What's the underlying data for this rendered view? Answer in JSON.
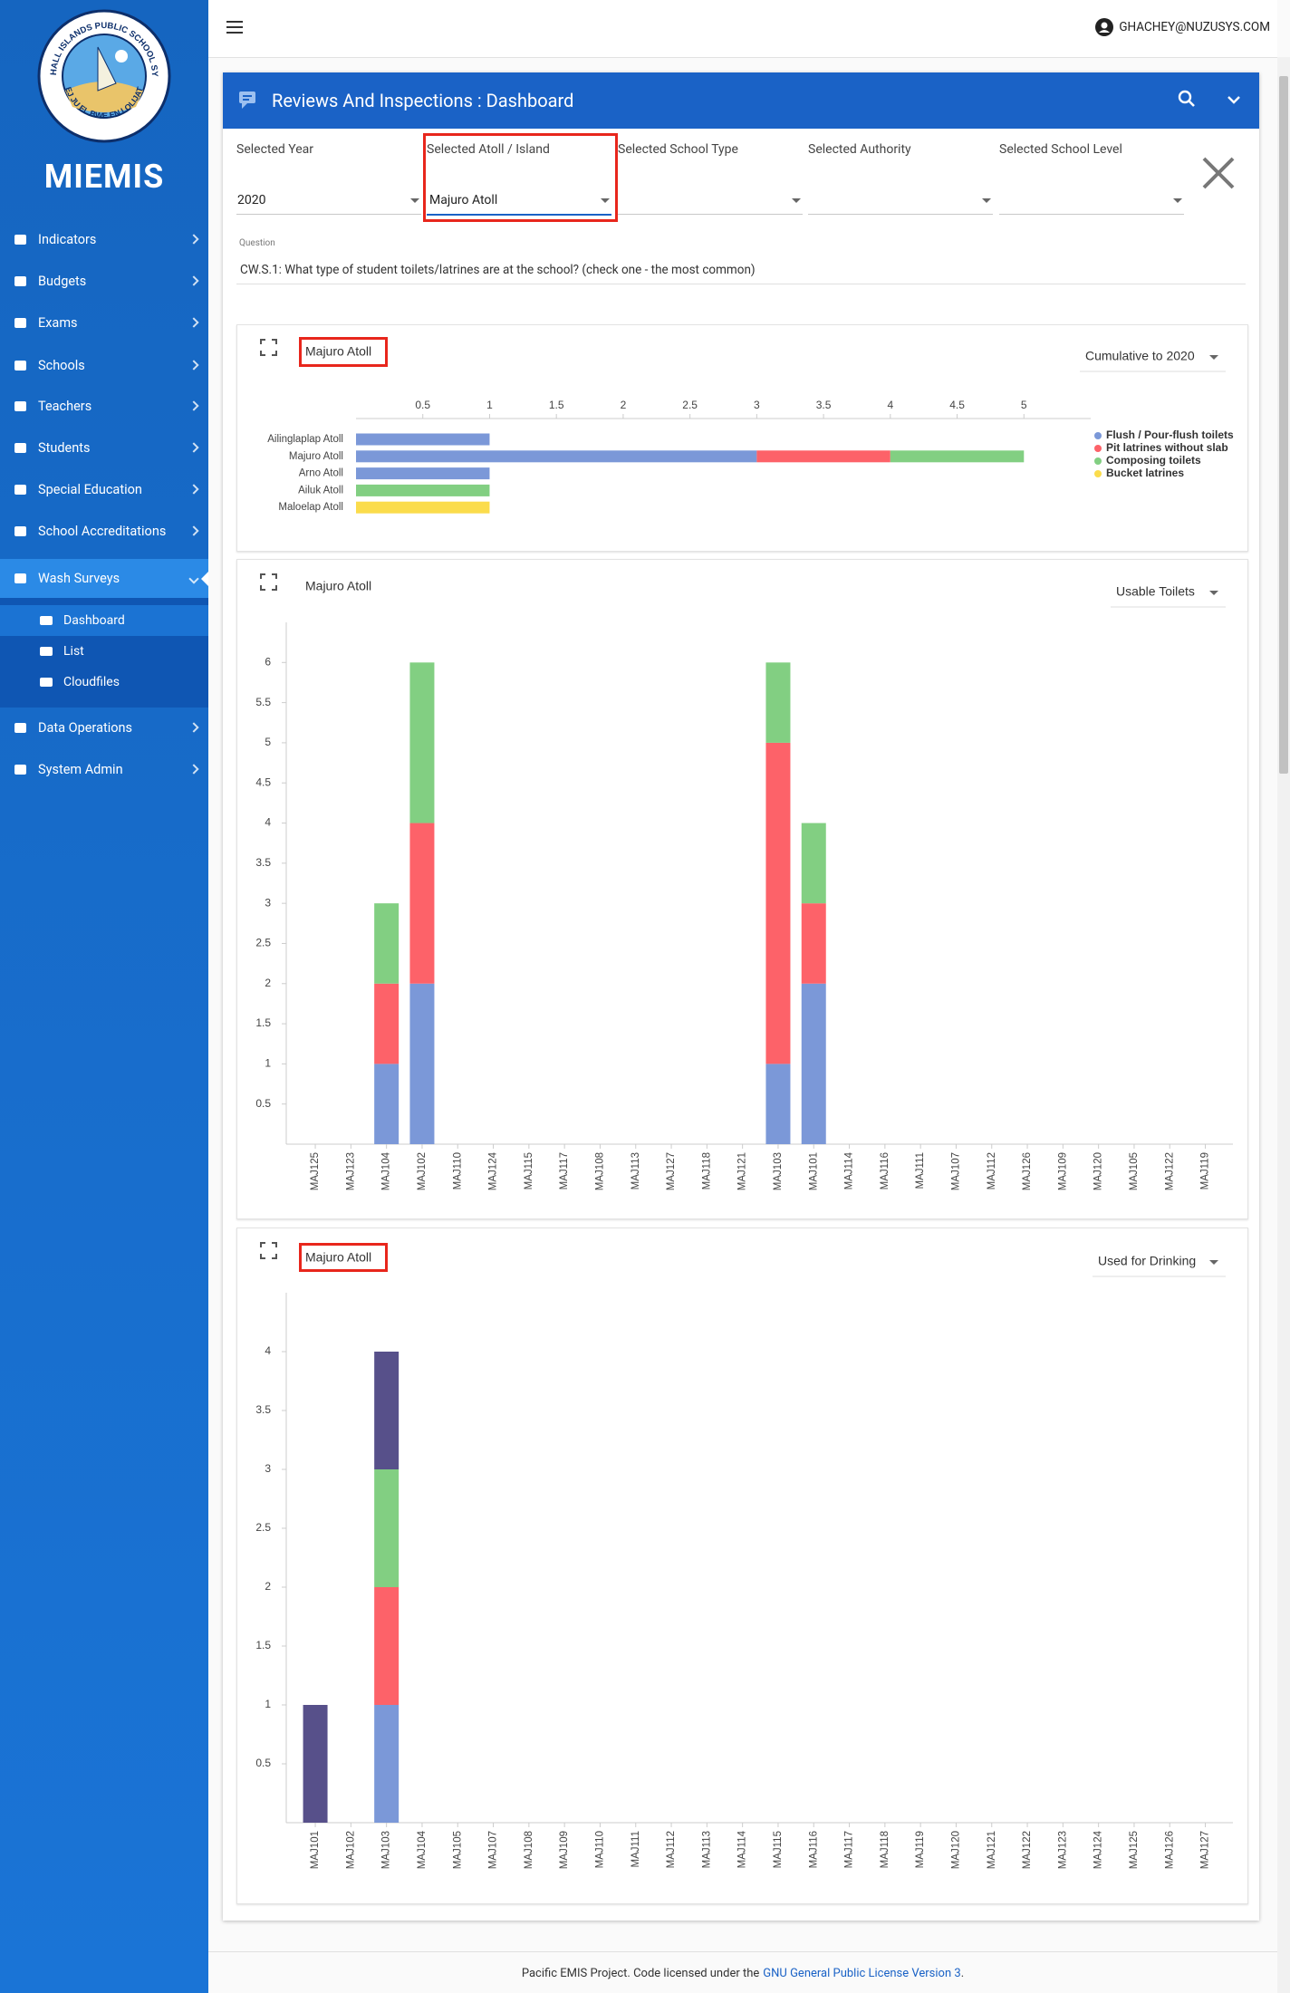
{
  "sidebar": {
    "logo_top": "MARSHALL ISLANDS PUBLIC SCHOOL SYSTEM",
    "logo_bottom": "\"EJ JU EL BWE EN LOLIJAT\"",
    "brand": "MIEMIS",
    "nav": [
      "Indicators",
      "Budgets",
      "Exams",
      "Schools",
      "Teachers",
      "Students",
      "Special Education",
      "School Accreditations",
      "Wash Surveys",
      "Data Operations",
      "System Admin"
    ],
    "submenu": [
      "Dashboard",
      "List",
      "Cloudfiles"
    ]
  },
  "topbar": {
    "user": "GHACHEY@NUZUSYS.COM"
  },
  "panel": {
    "title": "Reviews And Inspections : Dashboard"
  },
  "filters": [
    {
      "label": "Selected Year",
      "value": "2020"
    },
    {
      "label": "Selected Atoll / Island",
      "value": "Majuro Atoll"
    },
    {
      "label": "Selected School Type"
    },
    {
      "label": "Selected Authority"
    },
    {
      "label": "Selected School Level"
    }
  ],
  "question": {
    "label": "Question",
    "text": "CW.S.1: What type of student toilets/latrines are at the school? (check one - the most common)"
  },
  "chart_data": [
    {
      "type": "bar",
      "horizontal": true,
      "stacked": true,
      "title": "Majuro Atoll",
      "selector": "Cumulative to 2020",
      "categories": [
        "Ailinglaplap Atoll",
        "Majuro Atoll",
        "Arno Atoll",
        "Ailuk Atoll",
        "Maloelap Atoll"
      ],
      "series": [
        {
          "name": "Flush / Pour-flush toilets",
          "color": "#7b98d8",
          "values": [
            1,
            3,
            1,
            0,
            0
          ]
        },
        {
          "name": "Pit latrines without slab",
          "color": "#fd6269",
          "values": [
            0,
            1,
            0,
            0,
            0
          ]
        },
        {
          "name": "Composing toilets",
          "color": "#82cf82",
          "values": [
            0,
            1,
            0,
            1,
            0
          ]
        },
        {
          "name": "Bucket latrines",
          "color": "#fbdc4c",
          "values": [
            0,
            0,
            0,
            0,
            1
          ]
        }
      ],
      "xlim": [
        0,
        5.5
      ],
      "xticks": [
        0.5,
        1,
        1.5,
        2,
        2.5,
        3,
        3.5,
        4,
        4.5,
        5
      ],
      "legend": "right"
    },
    {
      "type": "bar",
      "stacked": true,
      "title": "Majuro Atoll",
      "selector": "Usable Toilets",
      "categories": [
        "MAJ125",
        "MAJ123",
        "MAJ104",
        "MAJ102",
        "MAJ110",
        "MAJ124",
        "MAJ115",
        "MAJ117",
        "MAJ108",
        "MAJ113",
        "MAJ127",
        "MAJ118",
        "MAJ121",
        "MAJ103",
        "MAJ101",
        "MAJ114",
        "MAJ116",
        "MAJ111",
        "MAJ107",
        "MAJ112",
        "MAJ126",
        "MAJ109",
        "MAJ120",
        "MAJ105",
        "MAJ122",
        "MAJ119"
      ],
      "series": [
        {
          "color": "#7b98d8",
          "values": [
            0,
            0,
            1,
            2,
            0,
            0,
            0,
            0,
            0,
            0,
            0,
            0,
            0,
            1,
            2,
            0,
            0,
            0,
            0,
            0,
            0,
            0,
            0,
            0,
            0,
            0
          ]
        },
        {
          "color": "#fd6269",
          "values": [
            0,
            0,
            1,
            2,
            0,
            0,
            0,
            0,
            0,
            0,
            0,
            0,
            0,
            4,
            1,
            0,
            0,
            0,
            0,
            0,
            0,
            0,
            0,
            0,
            0,
            0
          ]
        },
        {
          "color": "#82cf82",
          "values": [
            0,
            0,
            1,
            2,
            0,
            0,
            0,
            0,
            0,
            0,
            0,
            0,
            0,
            1,
            1,
            0,
            0,
            0,
            0,
            0,
            0,
            0,
            0,
            0,
            0,
            0
          ]
        }
      ],
      "ylim": [
        0,
        6.5
      ],
      "yticks": [
        0.5,
        1,
        1.5,
        2,
        2.5,
        3,
        3.5,
        4,
        4.5,
        5,
        5.5,
        6
      ]
    },
    {
      "type": "bar",
      "stacked": true,
      "title": "Majuro Atoll",
      "selector": "Used for Drinking",
      "categories": [
        "MAJ101",
        "MAJ102",
        "MAJ103",
        "MAJ104",
        "MAJ105",
        "MAJ107",
        "MAJ108",
        "MAJ109",
        "MAJ110",
        "MAJ111",
        "MAJ112",
        "MAJ113",
        "MAJ114",
        "MAJ115",
        "MAJ116",
        "MAJ117",
        "MAJ118",
        "MAJ119",
        "MAJ120",
        "MAJ121",
        "MAJ122",
        "MAJ123",
        "MAJ124",
        "MAJ125",
        "MAJ126",
        "MAJ127"
      ],
      "series": [
        {
          "color": "#7b98d8",
          "values": [
            0,
            0,
            1,
            0,
            0,
            0,
            0,
            0,
            0,
            0,
            0,
            0,
            0,
            0,
            0,
            0,
            0,
            0,
            0,
            0,
            0,
            0,
            0,
            0,
            0,
            0
          ]
        },
        {
          "color": "#fd6269",
          "values": [
            0,
            0,
            1,
            0,
            0,
            0,
            0,
            0,
            0,
            0,
            0,
            0,
            0,
            0,
            0,
            0,
            0,
            0,
            0,
            0,
            0,
            0,
            0,
            0,
            0,
            0
          ]
        },
        {
          "color": "#82cf82",
          "values": [
            0,
            0,
            1,
            0,
            0,
            0,
            0,
            0,
            0,
            0,
            0,
            0,
            0,
            0,
            0,
            0,
            0,
            0,
            0,
            0,
            0,
            0,
            0,
            0,
            0,
            0
          ]
        },
        {
          "color": "#57508a",
          "values": [
            1,
            0,
            1,
            0,
            0,
            0,
            0,
            0,
            0,
            0,
            0,
            0,
            0,
            0,
            0,
            0,
            0,
            0,
            0,
            0,
            0,
            0,
            0,
            0,
            0,
            0
          ]
        }
      ],
      "ylim": [
        0,
        4.5
      ],
      "yticks": [
        0.5,
        1,
        1.5,
        2,
        2.5,
        3,
        3.5,
        4
      ]
    }
  ],
  "footer": {
    "text": "Pacific EMIS Project. Code licensed under the",
    "link": "GNU General Public License Version 3",
    "end": "."
  }
}
